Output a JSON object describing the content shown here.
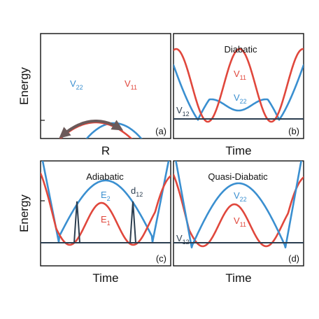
{
  "colors": {
    "v11": "#e0473c",
    "v22": "#3a8fd0",
    "coupling": "#2c3e50",
    "arrow": "#6b5a5a"
  },
  "axes": {
    "energy_label": "Energy",
    "r_label": "R",
    "time_label": "Time"
  },
  "panels": {
    "a": {
      "tag": "(a)",
      "v22": {
        "base": "V",
        "sub": "22"
      },
      "v11": {
        "base": "V",
        "sub": "11"
      }
    },
    "b": {
      "tag": "(b)",
      "title": "Diabatic",
      "v11": {
        "base": "V",
        "sub": "11"
      },
      "v22": {
        "base": "V",
        "sub": "22"
      },
      "v12": {
        "base": "V",
        "sub": "12"
      }
    },
    "c": {
      "tag": "(c)",
      "title": "Adiabatic",
      "e2": {
        "base": "E",
        "sub": "2"
      },
      "e1": {
        "base": "E",
        "sub": "1"
      },
      "d12": {
        "base": "d",
        "sub": "12"
      }
    },
    "d": {
      "tag": "(d)",
      "title": "Quasi-Diabatic",
      "v22": {
        "base": "V",
        "sub": "22"
      },
      "v11": {
        "base": "V",
        "sub": "11"
      },
      "v12": {
        "base": "V",
        "sub": "12"
      }
    }
  }
}
